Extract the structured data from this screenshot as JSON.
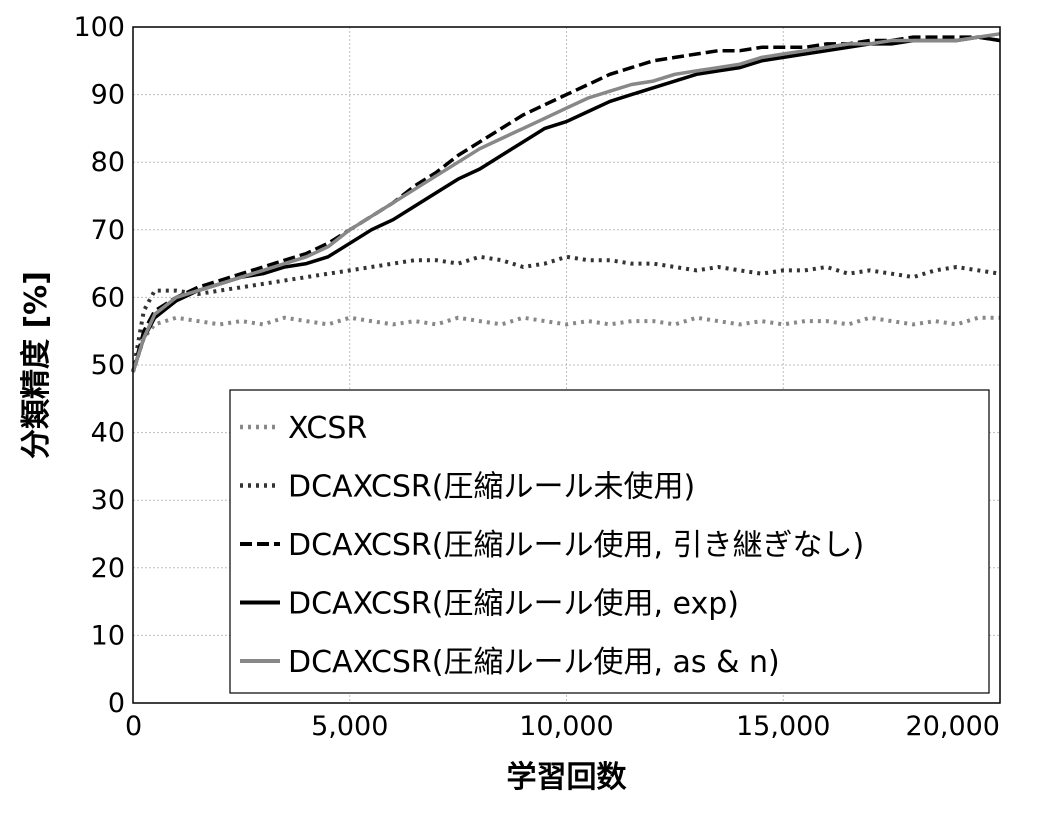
{
  "chart_data": {
    "type": "line",
    "title": "",
    "xlabel": "学習回数",
    "ylabel": "分類精度 [%]",
    "xlim": [
      0,
      20000
    ],
    "ylim": [
      0,
      100
    ],
    "grid": true,
    "legend_position": "bottom-right",
    "x_ticks": [
      "0",
      "5,000",
      "10,000",
      "15,000",
      "20,000"
    ],
    "y_ticks": [
      "0",
      "10",
      "20",
      "30",
      "40",
      "50",
      "60",
      "70",
      "80",
      "90",
      "100"
    ],
    "x": [
      0,
      250,
      500,
      1000,
      1500,
      2000,
      2500,
      3000,
      3500,
      4000,
      4500,
      5000,
      5500,
      6000,
      6500,
      7000,
      7500,
      8000,
      8500,
      9000,
      9500,
      10000,
      10500,
      11000,
      11500,
      12000,
      12500,
      13000,
      13500,
      14000,
      14500,
      15000,
      15500,
      16000,
      16500,
      17000,
      17500,
      18000,
      18500,
      19000,
      19500,
      20000
    ],
    "series": [
      {
        "name": "XCSR",
        "color": "#888888",
        "dash": "dot",
        "values": [
          49,
          54,
          56,
          57,
          56.5,
          56,
          56.5,
          56,
          57,
          56.5,
          56,
          57,
          56.5,
          56,
          56.5,
          56,
          57,
          56.5,
          56,
          57,
          56.5,
          56,
          56.5,
          56,
          56.5,
          56.5,
          56,
          57,
          56.5,
          56,
          56.5,
          56,
          56.5,
          56.5,
          56,
          57,
          56.5,
          56,
          56.5,
          56,
          57,
          57
        ]
      },
      {
        "name": "DCAXCSR(圧縮ルール未使用)",
        "color": "#333333",
        "dash": "dot",
        "values": [
          49,
          58,
          61,
          61,
          60.5,
          61,
          61.5,
          62,
          62.5,
          63,
          63.5,
          64,
          64.5,
          65,
          65.5,
          65.5,
          65,
          66,
          65.5,
          64.5,
          65,
          66,
          65.5,
          65.5,
          65,
          65,
          64.5,
          64,
          64.5,
          64,
          63.5,
          64,
          64,
          64.5,
          63.5,
          64,
          63.5,
          63,
          64,
          64.5,
          64,
          63.5
        ]
      },
      {
        "name": "DCAXCSR(圧縮ルール使用, 引き継ぎなし)",
        "color": "#000000",
        "dash": "dash",
        "values": [
          49,
          55,
          58,
          60,
          61.5,
          62.5,
          63.5,
          64.5,
          65.5,
          66.5,
          68,
          70,
          72,
          74,
          76.5,
          78.5,
          81,
          83,
          85,
          87,
          88.5,
          90,
          91.5,
          93,
          94,
          95,
          95.5,
          96,
          96.5,
          96.5,
          97,
          97,
          97,
          97.5,
          97.5,
          98,
          98,
          98.5,
          98.5,
          98.5,
          98.5,
          98
        ]
      },
      {
        "name": "DCAXCSR(圧縮ルール使用, exp)",
        "color": "#000000",
        "dash": "solid",
        "values": [
          49,
          54,
          57,
          59.5,
          61,
          62,
          63,
          63.5,
          64.5,
          65,
          66,
          68,
          70,
          71.5,
          73.5,
          75.5,
          77.5,
          79,
          81,
          83,
          85,
          86,
          87.5,
          89,
          90,
          91,
          92,
          93,
          93.5,
          94,
          95,
          95.5,
          96,
          96.5,
          97,
          97.5,
          97.5,
          98,
          98,
          98,
          98.5,
          98
        ]
      },
      {
        "name": "DCAXCSR(圧縮ルール使用, as & n)",
        "color": "#888888",
        "dash": "solid",
        "values": [
          49,
          54,
          57.5,
          60,
          61,
          62,
          63,
          64,
          65,
          66,
          67.5,
          70,
          72,
          74,
          76,
          78,
          80,
          82,
          83.5,
          85,
          86.5,
          88,
          89.5,
          90.5,
          91.5,
          92,
          93,
          93.5,
          94,
          94.5,
          95.5,
          96,
          96.5,
          97,
          97.5,
          97.5,
          98,
          98,
          98,
          98,
          98.5,
          99
        ]
      }
    ]
  }
}
